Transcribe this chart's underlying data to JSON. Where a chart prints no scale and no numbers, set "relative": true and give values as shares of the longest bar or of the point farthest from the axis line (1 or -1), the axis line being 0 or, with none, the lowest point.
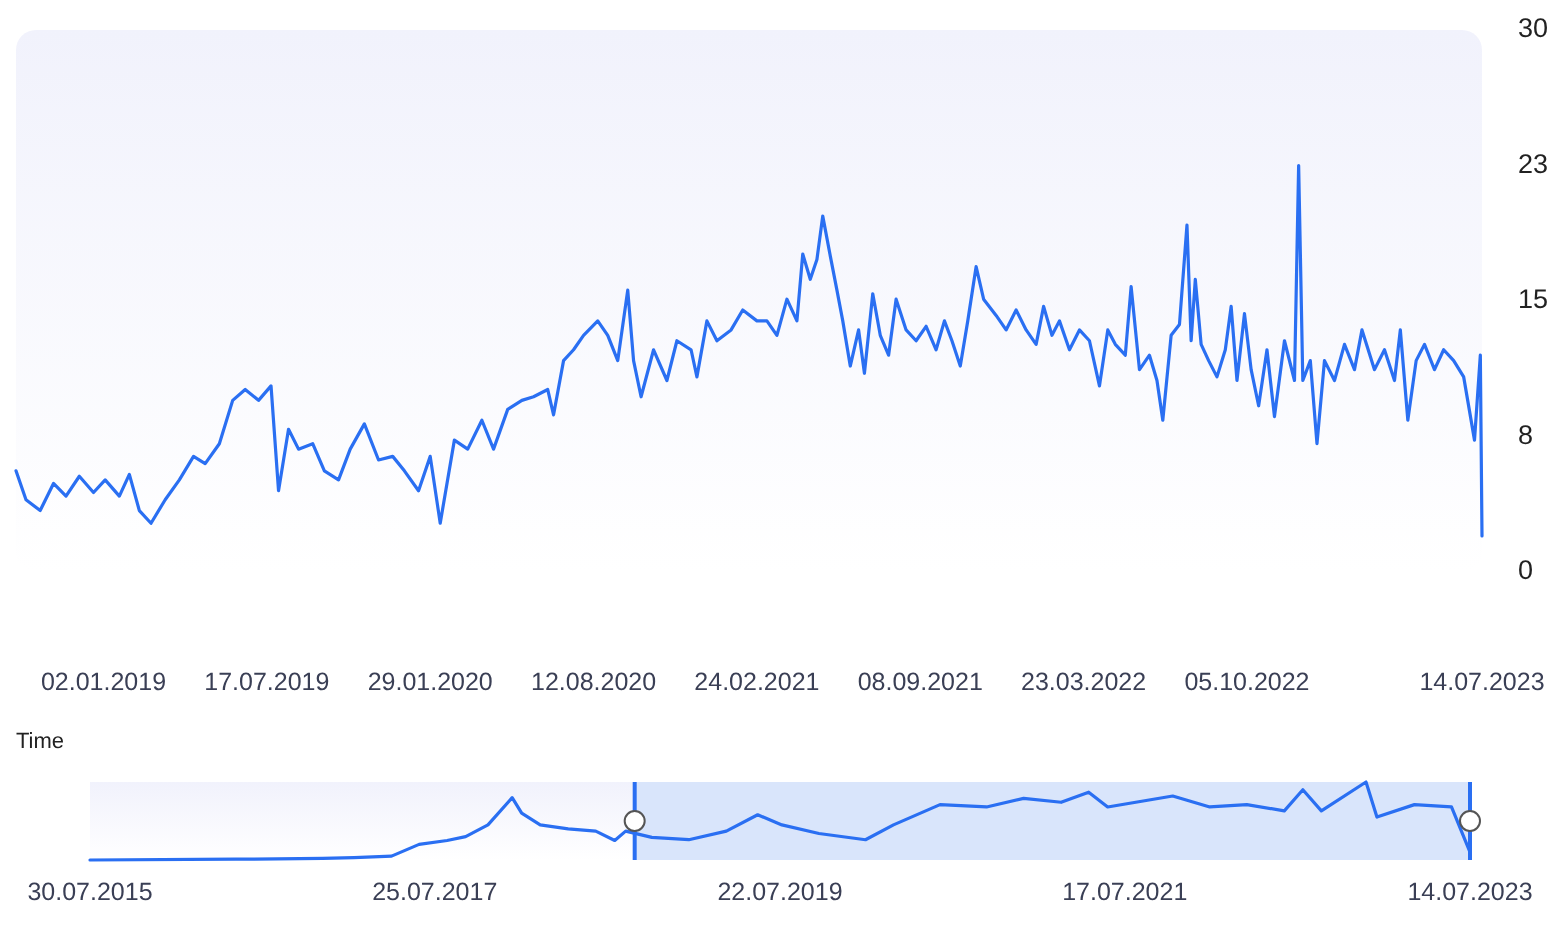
{
  "chart_data": [
    {
      "type": "line",
      "xlabel": "Time",
      "xlim": [
        "2018-09-19",
        "2023-07-14"
      ],
      "ylim": [
        0,
        30
      ],
      "yticks": [
        0,
        {
          "value": 7.5,
          "label": "8"
        },
        15,
        {
          "value": 22.5,
          "label": "23"
        },
        30
      ],
      "xticks": [
        {
          "value": "2019-01-02",
          "label": "02.01.2019"
        },
        {
          "value": "2019-07-17",
          "label": "17.07.2019"
        },
        {
          "value": "2020-01-29",
          "label": "29.01.2020"
        },
        {
          "value": "2020-08-12",
          "label": "12.08.2020"
        },
        {
          "value": "2021-02-24",
          "label": "24.02.2021"
        },
        {
          "value": "2021-09-08",
          "label": "08.09.2021"
        },
        {
          "value": "2022-03-23",
          "label": "23.03.2022"
        },
        {
          "value": "2022-10-05",
          "label": "05.10.2022"
        },
        {
          "value": "2023-07-14",
          "label": "14.07.2023"
        }
      ],
      "x": [
        "2018-09-19",
        "2018-10-01",
        "2018-10-18",
        "2018-11-03",
        "2018-11-18",
        "2018-12-04",
        "2018-12-21",
        "2019-01-04",
        "2019-01-21",
        "2019-02-02",
        "2019-02-14",
        "2019-02-28",
        "2019-03-17",
        "2019-04-03",
        "2019-04-20",
        "2019-05-04",
        "2019-05-21",
        "2019-06-06",
        "2019-06-21",
        "2019-07-07",
        "2019-07-22",
        "2019-07-31",
        "2019-08-12",
        "2019-08-24",
        "2019-09-10",
        "2019-09-24",
        "2019-10-11",
        "2019-10-25",
        "2019-11-11",
        "2019-11-28",
        "2019-12-15",
        "2019-12-29",
        "2020-01-15",
        "2020-01-29",
        "2020-02-10",
        "2020-02-27",
        "2020-03-14",
        "2020-03-31",
        "2020-04-14",
        "2020-05-01",
        "2020-05-18",
        "2020-06-01",
        "2020-06-18",
        "2020-06-25",
        "2020-07-07",
        "2020-07-19",
        "2020-07-31",
        "2020-08-17",
        "2020-08-29",
        "2020-09-10",
        "2020-09-22",
        "2020-09-29",
        "2020-10-08",
        "2020-10-23",
        "2020-11-08",
        "2020-11-20",
        "2020-12-07",
        "2020-12-14",
        "2020-12-26",
        "2021-01-07",
        "2021-01-24",
        "2021-02-07",
        "2021-02-24",
        "2021-03-08",
        "2021-03-20",
        "2021-04-01",
        "2021-04-13",
        "2021-04-20",
        "2021-04-29",
        "2021-05-07",
        "2021-05-14",
        "2021-05-23",
        "2021-05-31",
        "2021-06-07",
        "2021-06-16",
        "2021-06-26",
        "2021-07-03",
        "2021-07-13",
        "2021-07-22",
        "2021-08-01",
        "2021-08-10",
        "2021-08-22",
        "2021-09-03",
        "2021-09-15",
        "2021-09-27",
        "2021-10-07",
        "2021-10-16",
        "2021-10-26",
        "2021-11-04",
        "2021-11-14",
        "2021-11-23",
        "2021-12-08",
        "2021-12-20",
        "2022-01-01",
        "2022-01-13",
        "2022-01-25",
        "2022-02-03",
        "2022-02-13",
        "2022-02-22",
        "2022-03-06",
        "2022-03-18",
        "2022-03-30",
        "2022-04-11",
        "2022-04-21",
        "2022-04-30",
        "2022-05-12",
        "2022-05-19",
        "2022-05-29",
        "2022-06-10",
        "2022-06-19",
        "2022-06-26",
        "2022-07-06",
        "2022-07-16",
        "2022-07-25",
        "2022-07-30",
        "2022-08-04",
        "2022-08-11",
        "2022-08-20",
        "2022-08-30",
        "2022-09-09",
        "2022-09-16",
        "2022-09-23",
        "2022-10-02",
        "2022-10-10",
        "2022-10-19",
        "2022-10-29",
        "2022-11-07",
        "2022-11-19",
        "2022-12-01",
        "2022-12-06",
        "2022-12-11",
        "2022-12-20",
        "2022-12-28",
        "2023-01-06",
        "2023-01-18",
        "2023-01-30",
        "2023-02-11",
        "2023-02-20",
        "2023-03-07",
        "2023-03-19",
        "2023-03-31",
        "2023-04-07",
        "2023-04-16",
        "2023-04-26",
        "2023-05-06",
        "2023-05-18",
        "2023-05-29",
        "2023-06-10",
        "2023-06-22",
        "2023-07-05",
        "2023-07-12",
        "2023-07-14"
      ],
      "series": [
        {
          "color": "#2a6ff2",
          "values": [
            5.6,
            4.0,
            3.4,
            4.9,
            4.2,
            5.3,
            4.4,
            5.1,
            4.2,
            5.4,
            3.4,
            2.7,
            4.0,
            5.1,
            6.4,
            6.0,
            7.1,
            9.5,
            10.1,
            9.5,
            10.3,
            4.5,
            7.9,
            6.8,
            7.1,
            5.6,
            5.1,
            6.8,
            8.2,
            6.2,
            6.4,
            5.6,
            4.5,
            6.4,
            2.7,
            7.3,
            6.8,
            8.4,
            6.8,
            9.0,
            9.5,
            9.7,
            10.1,
            8.7,
            11.7,
            12.3,
            13.1,
            13.9,
            13.1,
            11.7,
            15.6,
            11.7,
            9.7,
            12.3,
            10.6,
            12.8,
            12.3,
            10.8,
            13.9,
            12.8,
            13.4,
            14.5,
            13.9,
            13.9,
            13.1,
            15.1,
            13.9,
            17.6,
            16.2,
            17.3,
            19.7,
            17.5,
            15.6,
            13.9,
            11.4,
            13.4,
            11.0,
            15.4,
            13.1,
            12.0,
            15.1,
            13.4,
            12.8,
            13.6,
            12.3,
            13.9,
            12.8,
            11.4,
            13.9,
            16.9,
            15.1,
            14.2,
            13.4,
            14.5,
            13.4,
            12.6,
            14.7,
            13.1,
            13.9,
            12.3,
            13.4,
            12.8,
            10.3,
            13.4,
            12.6,
            12.0,
            15.8,
            11.2,
            12.0,
            10.6,
            8.4,
            13.1,
            13.7,
            19.2,
            12.8,
            16.2,
            12.6,
            11.7,
            10.8,
            12.3,
            14.7,
            10.6,
            14.3,
            11.2,
            9.2,
            12.3,
            8.6,
            12.8,
            10.6,
            22.5,
            10.6,
            11.7,
            7.1,
            11.7,
            10.6,
            12.6,
            11.2,
            13.4,
            11.2,
            12.3,
            10.6,
            13.4,
            8.4,
            11.7,
            12.6,
            11.2,
            12.3,
            11.7,
            10.8,
            7.3,
            12.0,
            2.0
          ]
        }
      ]
    },
    {
      "type": "line",
      "relative": true,
      "tick_labels": "x",
      "xlim": [
        "2015-07-30",
        "2023-07-14"
      ],
      "xticks": [
        {
          "value": "2015-07-30",
          "label": "30.07.2015"
        },
        {
          "value": "2017-07-25",
          "label": "25.07.2017"
        },
        {
          "value": "2019-07-22",
          "label": "22.07.2019"
        },
        {
          "value": "2021-07-17",
          "label": "17.07.2021"
        },
        {
          "value": "2023-07-14",
          "label": "14.07.2023"
        }
      ],
      "bands": [
        {
          "axis": "x",
          "from": "2018-09-19",
          "to": "2023-07-14",
          "color": "#d9e5fb"
        }
      ],
      "x": [
        "2015-07-30",
        "2016-06-01",
        "2016-12-01",
        "2017-02-05",
        "2017-04-25",
        "2017-06-22",
        "2017-08-20",
        "2017-09-28",
        "2017-11-14",
        "2018-01-04",
        "2018-01-24",
        "2018-03-04",
        "2018-05-02",
        "2018-06-29",
        "2018-08-08",
        "2018-08-31",
        "2018-10-25",
        "2019-01-11",
        "2019-03-31",
        "2019-06-05",
        "2019-07-26",
        "2019-10-12",
        "2020-01-18",
        "2020-03-17",
        "2020-06-23",
        "2020-09-29",
        "2020-12-16",
        "2021-03-05",
        "2021-05-02",
        "2021-06-11",
        "2021-10-26",
        "2022-01-12",
        "2022-03-31",
        "2022-06-18",
        "2022-07-27",
        "2022-09-04",
        "2022-12-07",
        "2022-12-30",
        "2023-03-19",
        "2023-06-05",
        "2023-07-14"
      ],
      "series": [
        {
          "color": "#2a6ff2",
          "values": [
            0,
            0.01,
            0.02,
            0.03,
            0.05,
            0.2,
            0.25,
            0.3,
            0.45,
            0.8,
            0.6,
            0.45,
            0.4,
            0.37,
            0.25,
            0.37,
            0.29,
            0.26,
            0.37,
            0.58,
            0.45,
            0.34,
            0.26,
            0.45,
            0.71,
            0.68,
            0.79,
            0.74,
            0.87,
            0.68,
            0.82,
            0.68,
            0.71,
            0.63,
            0.9,
            0.63,
            1.0,
            0.55,
            0.71,
            0.68,
            0.1
          ]
        }
      ]
    }
  ]
}
